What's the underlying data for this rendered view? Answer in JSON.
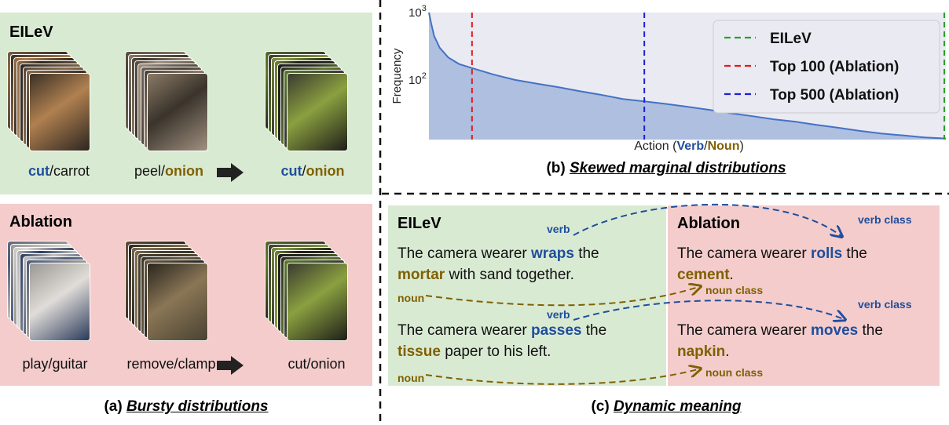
{
  "panel_a": {
    "eilev_title": "EILeV",
    "ablation_title": "Ablation",
    "eilev_captions": [
      {
        "verb": "cut",
        "sep": "/",
        "noun": "carrot",
        "verb_hl": true,
        "noun_hl": false
      },
      {
        "verb": "peel",
        "sep": "/",
        "noun": "onion",
        "verb_hl": false,
        "noun_hl": true
      },
      {
        "verb": "cut",
        "sep": "/",
        "noun": "onion",
        "verb_hl": true,
        "noun_hl": true
      }
    ],
    "ablation_captions": [
      "play/guitar",
      "remove/clamp",
      "cut/onion"
    ],
    "subcaption_prefix": "(a) ",
    "subcaption_em": "Bursty distributions"
  },
  "panel_b": {
    "subcaption_prefix": "(b) ",
    "subcaption_em": "Skewed marginal distributions",
    "xlabel_prefix": "Action (",
    "xlabel_verb": "Verb",
    "xlabel_sep": "/",
    "xlabel_noun": "Noun",
    "xlabel_suffix": ")"
  },
  "chart_data": {
    "type": "area",
    "ylabel": "Frequency",
    "yscale": "log",
    "ylim": [
      13,
      1000
    ],
    "yticks": [
      {
        "base": "10",
        "exp": "3",
        "value": 1000
      },
      {
        "base": "10",
        "exp": "2",
        "value": 100
      }
    ],
    "xlim": [
      0,
      1200
    ],
    "series": [
      {
        "x": [
          0,
          5,
          12,
          25,
          45,
          70,
          100,
          150,
          200,
          250,
          300,
          350,
          400,
          450,
          500,
          550,
          600,
          650,
          700,
          750,
          800,
          850,
          900,
          950,
          1000,
          1050,
          1100,
          1150,
          1200
        ],
        "y": [
          1000,
          700,
          450,
          300,
          215,
          172,
          150,
          120,
          100,
          88,
          78,
          68,
          60,
          52,
          48,
          44,
          40,
          36,
          32,
          29,
          26,
          24,
          21.5,
          19.5,
          17.5,
          16,
          15,
          14,
          13.5
        ]
      }
    ],
    "vlines": [
      {
        "x": 1200,
        "color": "#2ca02c"
      },
      {
        "x": 100,
        "color": "#e31a1c"
      },
      {
        "x": 500,
        "color": "#1f1fd6"
      }
    ],
    "legend": [
      {
        "label": "EILeV",
        "color": "#2ca02c"
      },
      {
        "label": "Top 100 (Ablation)",
        "color": "#e31a1c"
      },
      {
        "label": "Top 500 (Ablation)",
        "color": "#1f1fd6"
      }
    ],
    "legend_position": "top-right",
    "fill_color": "#aebfe0",
    "line_color": "#4472c4"
  },
  "panel_c": {
    "eilev_title": "EILeV",
    "ablation_title": "Ablation",
    "s1_pre": "The camera wearer ",
    "s1_verb": "wraps",
    "s1_mid": " the",
    "s1_noun": "mortar",
    "s1_post": " with sand together.",
    "s2_pre": "The camera wearer ",
    "s2_verb": "passes",
    "s2_mid": " the",
    "s2_noun": "tissue",
    "s2_post": " paper to his left.",
    "a1_pre": "The camera wearer ",
    "a1_verb": "rolls",
    "a1_mid": " the",
    "a1_noun": "cement",
    "a1_post": ".",
    "a2_pre": "The camera wearer ",
    "a2_verb": "moves",
    "a2_mid": " the",
    "a2_noun": "napkin",
    "a2_post": ".",
    "tag_verb": "verb",
    "tag_noun": "noun",
    "tag_verb_class": "verb class",
    "tag_noun_class": "noun class",
    "subcaption_prefix": "(c) ",
    "subcaption_em": "Dynamic meaning"
  },
  "colors": {
    "verb": "#1f4e9c",
    "noun": "#7f6000",
    "green_panel": "#d9ead3",
    "red_panel": "#f4cccc"
  }
}
